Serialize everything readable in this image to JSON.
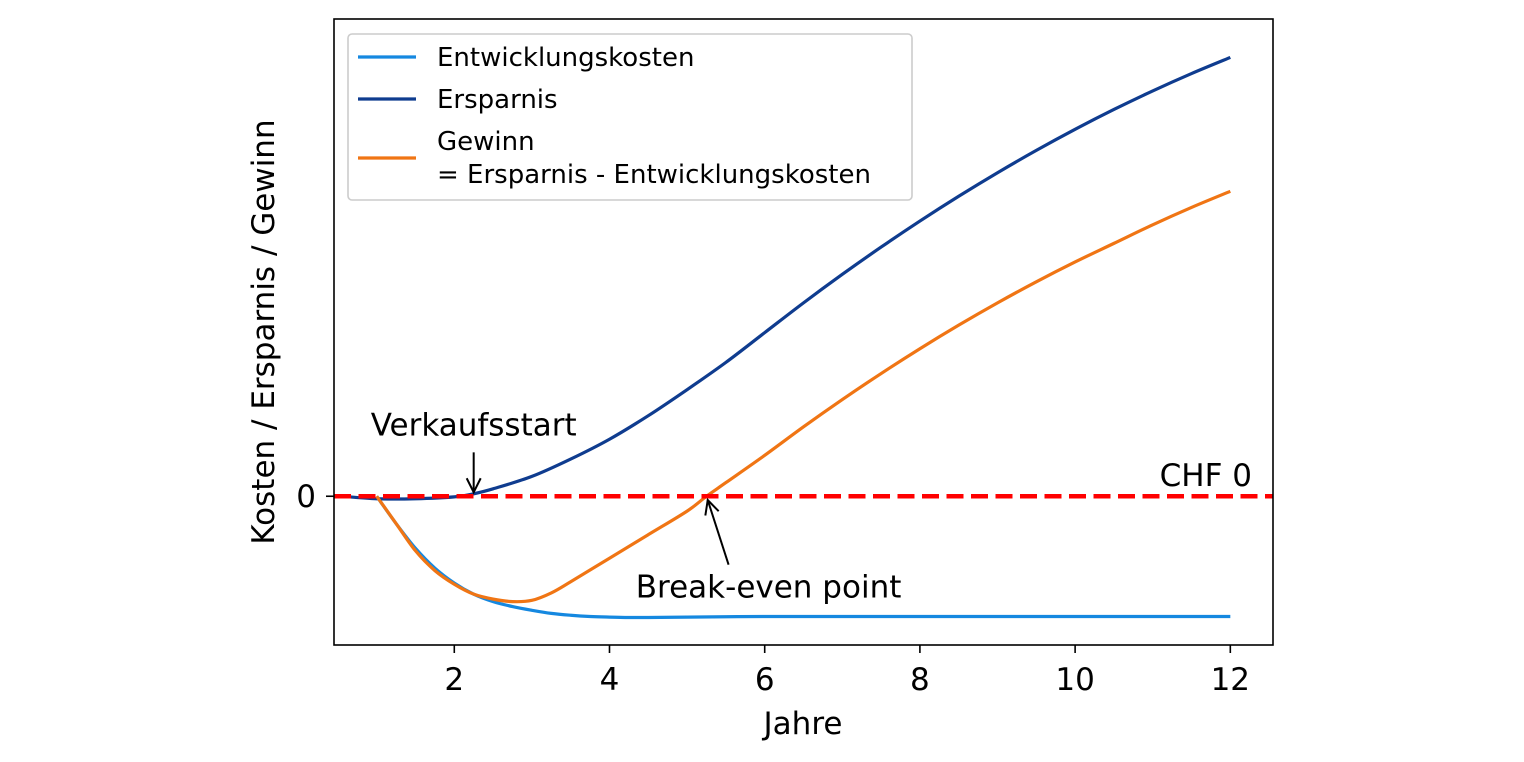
{
  "chart_data": {
    "type": "line",
    "title": "",
    "xlabel": "Jahre",
    "ylabel": "Kosten / Ersparnis / Gewinn",
    "xlim": [
      0.45,
      12.55
    ],
    "ylim": [
      -1.2,
      3.85
    ],
    "xticks": [
      2,
      4,
      6,
      8,
      10,
      12
    ],
    "yticks": [
      {
        "value": 0,
        "label": "0"
      }
    ],
    "grid": false,
    "legend_position": "top-left",
    "series": [
      {
        "name": "Entwicklungskosten",
        "color": "#1588e0",
        "x": [
          1.0,
          1.25,
          1.5,
          1.75,
          2.0,
          2.25,
          2.5,
          2.75,
          3.0,
          3.25,
          3.5,
          3.75,
          4.0,
          4.25,
          4.5,
          5.0,
          5.5,
          6.0,
          7.0,
          8.0,
          9.0,
          10.0,
          11.0,
          12.0
        ],
        "y": [
          0.0,
          -0.22,
          -0.42,
          -0.58,
          -0.7,
          -0.79,
          -0.85,
          -0.89,
          -0.92,
          -0.945,
          -0.96,
          -0.97,
          -0.975,
          -0.978,
          -0.978,
          -0.975,
          -0.972,
          -0.97,
          -0.97,
          -0.97,
          -0.97,
          -0.97,
          -0.97,
          -0.97
        ]
      },
      {
        "name": "Ersparnis",
        "color": "#0f3c8f",
        "x": [
          0.55,
          1.0,
          1.5,
          2.0,
          2.25,
          2.5,
          3.0,
          3.5,
          4.0,
          4.5,
          5.0,
          5.5,
          6.0,
          6.5,
          7.0,
          7.5,
          8.0,
          8.5,
          9.0,
          9.5,
          10.0,
          10.5,
          11.0,
          11.5,
          12.0
        ],
        "y": [
          0.0,
          -0.02,
          -0.02,
          -0.005,
          0.02,
          0.06,
          0.16,
          0.3,
          0.46,
          0.65,
          0.86,
          1.08,
          1.32,
          1.56,
          1.79,
          2.01,
          2.22,
          2.42,
          2.61,
          2.79,
          2.96,
          3.12,
          3.27,
          3.41,
          3.54
        ]
      },
      {
        "name": "Gewinn\n= Ersparnis - Entwicklungskosten",
        "color": "#f07514",
        "x": [
          1.0,
          1.25,
          1.5,
          1.75,
          2.0,
          2.25,
          2.5,
          2.75,
          3.0,
          3.25,
          3.5,
          4.0,
          4.5,
          5.0,
          5.25,
          5.5,
          6.0,
          6.5,
          7.0,
          7.5,
          8.0,
          8.5,
          9.0,
          9.5,
          10.0,
          10.5,
          11.0,
          11.5,
          12.0
        ],
        "y": [
          0.0,
          -0.22,
          -0.44,
          -0.6,
          -0.71,
          -0.79,
          -0.83,
          -0.85,
          -0.84,
          -0.78,
          -0.69,
          -0.5,
          -0.31,
          -0.12,
          0.0,
          0.11,
          0.33,
          0.56,
          0.78,
          0.99,
          1.19,
          1.38,
          1.56,
          1.73,
          1.89,
          2.04,
          2.19,
          2.33,
          2.46
        ]
      }
    ],
    "reference_line": {
      "y": 0,
      "label": "CHF 0",
      "color": "#ff0000",
      "style": "dashed"
    },
    "annotations": [
      {
        "text": "Verkaufsstart",
        "x": 2.25,
        "y": 0.0,
        "text_x": 2.25,
        "text_y": 0.58
      },
      {
        "text": "Break-even point",
        "x": 5.25,
        "y": 0.0,
        "text_x": 6.05,
        "text_y": -0.73
      }
    ]
  }
}
